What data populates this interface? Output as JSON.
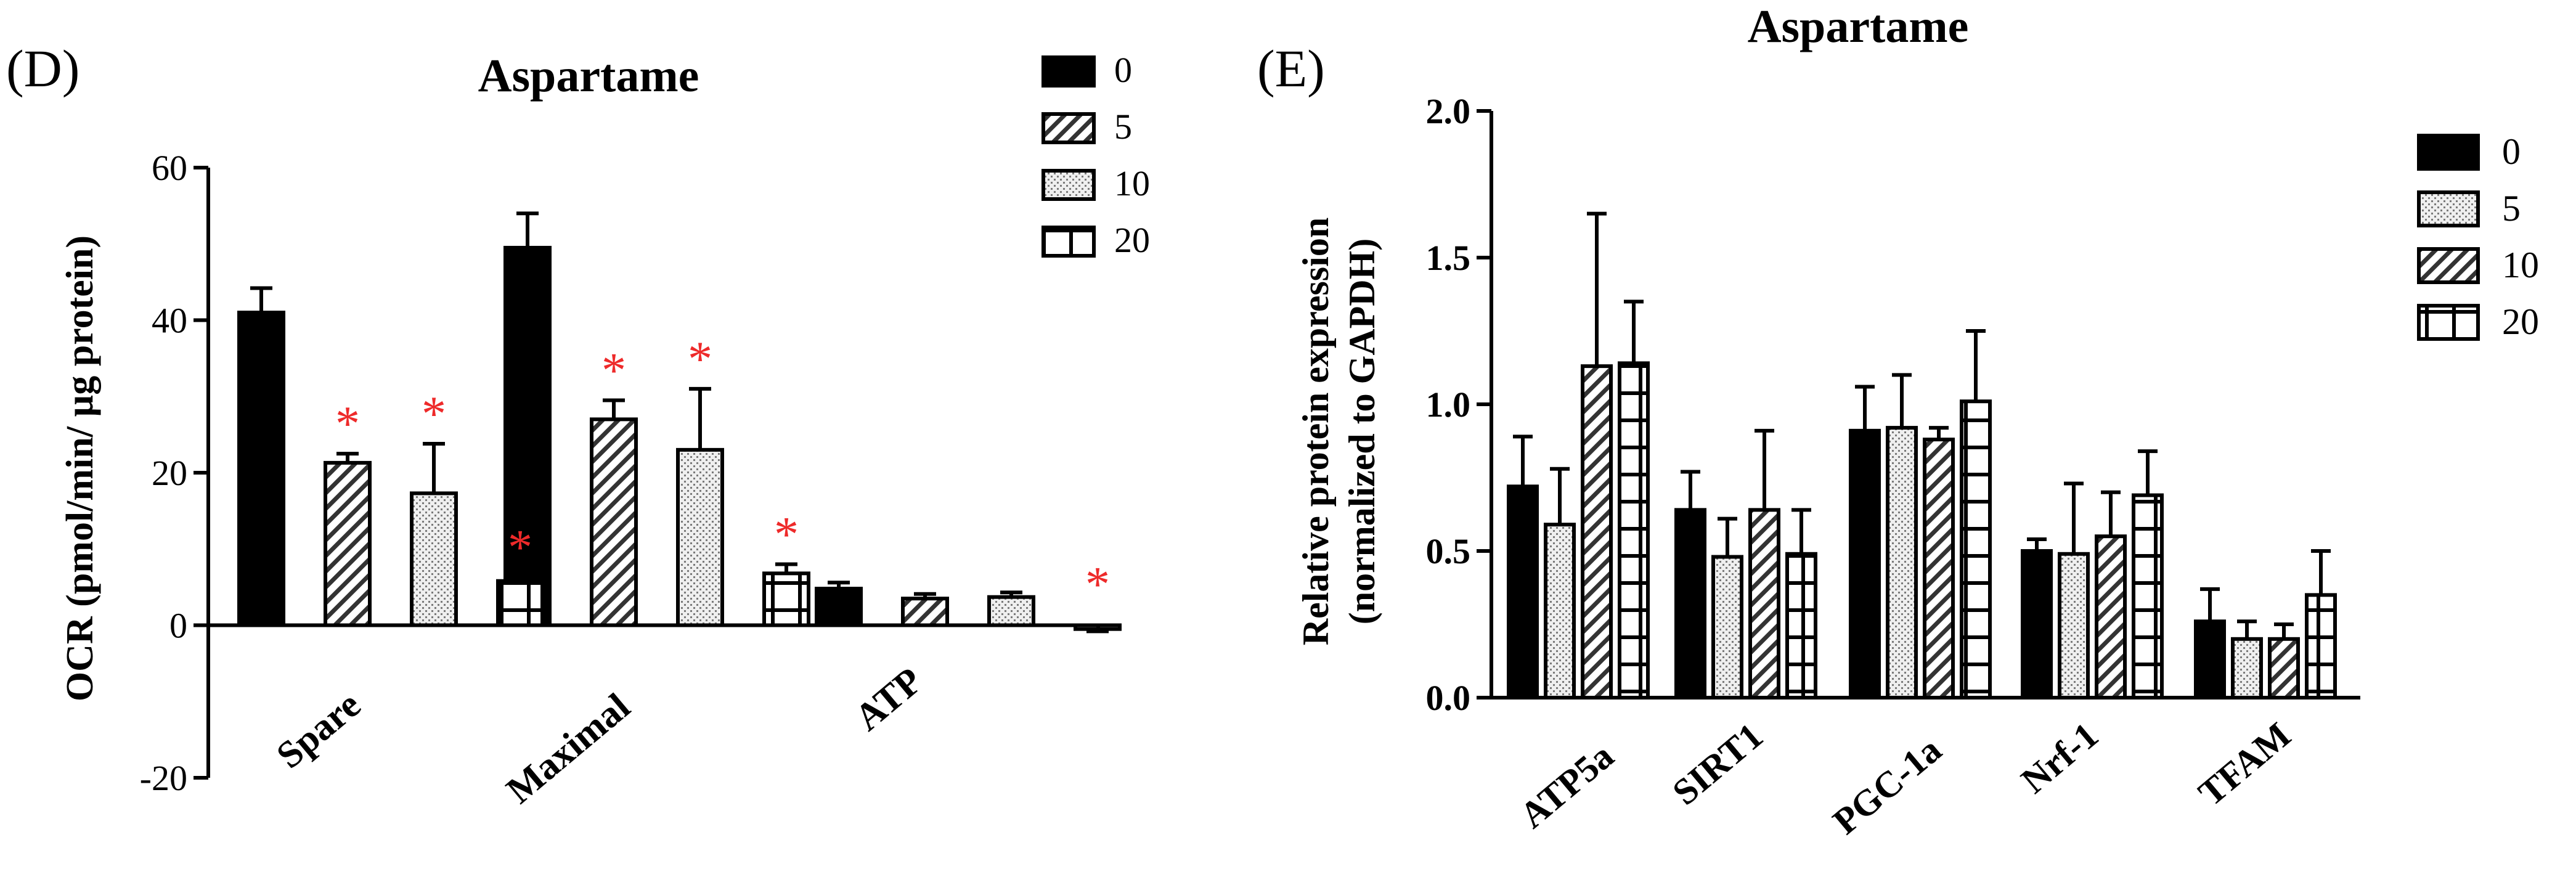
{
  "colors": {
    "bar_fill": "#000000",
    "bar_fill_light": "#e8e8e8",
    "significance": "#ee2a2a",
    "axis": "#000000"
  },
  "chart_data": [
    {
      "panel_label": "(D)",
      "type": "bar",
      "title": "Aspartame",
      "ylabel": "OCR (pmol/min/ µg protein)",
      "xlabel": "",
      "ylim": [
        -20,
        60
      ],
      "yticks": [
        60,
        40,
        20,
        0,
        -20
      ],
      "categories": [
        "Spare",
        "Maximal",
        "ATP"
      ],
      "legend": [
        "0",
        "5",
        "10",
        "20"
      ],
      "series": [
        {
          "name": "0",
          "pattern": "solid",
          "values": [
            41,
            49.5,
            4.8
          ],
          "errors": [
            3.2,
            4.5,
            0.8
          ],
          "significant": [
            false,
            false,
            false
          ]
        },
        {
          "name": "5",
          "pattern": "diagonal",
          "values": [
            21.3,
            27,
            3.5
          ],
          "errors": [
            1.2,
            2.5,
            0.6
          ],
          "significant": [
            true,
            true,
            false
          ]
        },
        {
          "name": "10",
          "pattern": "dots",
          "values": [
            17.3,
            23,
            3.7
          ],
          "errors": [
            6.5,
            8,
            0.6
          ],
          "significant": [
            true,
            true,
            false
          ]
        },
        {
          "name": "20",
          "pattern": "grid",
          "values": [
            5.8,
            6.8,
            -0.5
          ],
          "errors": [
            0.5,
            1.2,
            0.3
          ],
          "significant": [
            true,
            true,
            true
          ]
        }
      ],
      "significance_marker": "*"
    },
    {
      "panel_label": "(E)",
      "type": "bar",
      "title": "Aspartame",
      "ylabel": "Relative protein expression (normalized to GAPDH)",
      "ylabel_lines": [
        "Relative protein expression",
        "(normalized to GAPDH)"
      ],
      "xlabel": "",
      "ylim": [
        0,
        2.0
      ],
      "yticks": [
        "2.0",
        "1.5",
        "1.0",
        "0.5",
        "0.0"
      ],
      "categories": [
        "ATP5a",
        "SIRT1",
        "PGC-1a",
        "Nrf-1",
        "TFAM"
      ],
      "legend": [
        "0",
        "5",
        "10",
        "20"
      ],
      "series": [
        {
          "name": "0",
          "pattern": "solid",
          "values": [
            0.72,
            0.64,
            0.91,
            0.5,
            0.26
          ],
          "errors": [
            0.17,
            0.13,
            0.15,
            0.04,
            0.11
          ]
        },
        {
          "name": "5",
          "pattern": "dots",
          "values": [
            0.59,
            0.48,
            0.92,
            0.49,
            0.2
          ],
          "errors": [
            0.19,
            0.13,
            0.18,
            0.24,
            0.06
          ]
        },
        {
          "name": "10",
          "pattern": "diagonal",
          "values": [
            1.13,
            0.64,
            0.88,
            0.55,
            0.2
          ],
          "errors": [
            0.52,
            0.27,
            0.04,
            0.15,
            0.05
          ]
        },
        {
          "name": "20",
          "pattern": "grid",
          "values": [
            1.14,
            0.49,
            1.01,
            0.69,
            0.35
          ],
          "errors": [
            0.21,
            0.15,
            0.24,
            0.15,
            0.15
          ]
        }
      ]
    }
  ]
}
